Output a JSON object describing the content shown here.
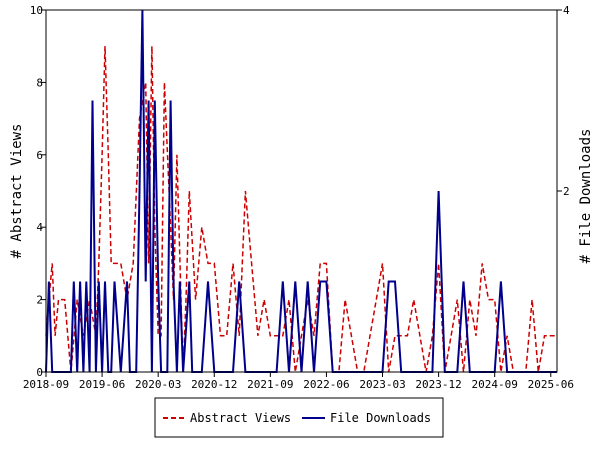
{
  "chart_data": {
    "type": "line",
    "xlabel": "",
    "ylabel_left": "# Abstract Views",
    "ylabel_right": "# File Downloads",
    "x_range": [
      "2018-09",
      "2025-07"
    ],
    "x_ticks": [
      "2018-09",
      "2019-06",
      "2020-03",
      "2020-12",
      "2021-09",
      "2022-06",
      "2023-03",
      "2023-12",
      "2024-09",
      "2025-06"
    ],
    "y_left_range": [
      0,
      10
    ],
    "y_left_ticks": [
      "0",
      "2",
      "4",
      "6",
      "8",
      "10"
    ],
    "y_right_range": [
      0,
      4
    ],
    "y_right_ticks": [
      "2",
      "4"
    ],
    "grid": false,
    "legend_position": "bottom",
    "series": [
      {
        "name": "Abstract Views",
        "axis": "left",
        "color": "#cc0000",
        "style": "dashed",
        "x": [
          "2018-09-01",
          "2018-09-15",
          "2018-10-01",
          "2018-10-15",
          "2018-11-01",
          "2018-12-01",
          "2019-01-01",
          "2019-02-01",
          "2019-03-01",
          "2019-04-01",
          "2019-05-01",
          "2019-05-15",
          "2019-06-01",
          "2019-06-15",
          "2019-07-01",
          "2019-07-15",
          "2019-08-01",
          "2019-09-01",
          "2019-10-01",
          "2019-11-01",
          "2019-12-01",
          "2020-01-01",
          "2020-01-15",
          "2020-02-01",
          "2020-02-15",
          "2020-03-01",
          "2020-03-15",
          "2020-04-01",
          "2020-05-01",
          "2020-05-15",
          "2020-06-01",
          "2020-07-01",
          "2020-07-15",
          "2020-08-01",
          "2020-09-01",
          "2020-10-01",
          "2020-11-01",
          "2020-12-01",
          "2021-01-01",
          "2021-02-01",
          "2021-03-01",
          "2021-04-01",
          "2021-05-01",
          "2021-06-01",
          "2021-07-01",
          "2021-08-01",
          "2021-09-01",
          "2021-10-01",
          "2021-11-01",
          "2021-12-01",
          "2022-01-01",
          "2022-02-01",
          "2022-03-01",
          "2022-04-01",
          "2022-05-01",
          "2022-06-01",
          "2022-07-01",
          "2022-08-01",
          "2022-09-01",
          "2022-10-01",
          "2022-11-01",
          "2022-12-01",
          "2023-01-01",
          "2023-02-01",
          "2023-03-01",
          "2023-04-01",
          "2023-05-01",
          "2023-06-01",
          "2023-07-01",
          "2023-08-01",
          "2023-09-01",
          "2023-10-01",
          "2023-11-01",
          "2023-12-01",
          "2024-01-01",
          "2024-02-01",
          "2024-03-01",
          "2024-04-01",
          "2024-05-01",
          "2024-06-01",
          "2024-07-01",
          "2024-08-01",
          "2024-09-01",
          "2024-10-01",
          "2024-11-01",
          "2024-12-01",
          "2025-01-01",
          "2025-02-01",
          "2025-03-01",
          "2025-04-01",
          "2025-05-01",
          "2025-06-01",
          "2025-07-01"
        ],
        "values": [
          1,
          2,
          3,
          1,
          2,
          2,
          0,
          2,
          1,
          2,
          1,
          3,
          6,
          9,
          6,
          3,
          3,
          3,
          2,
          3,
          7,
          8,
          3,
          9,
          4,
          1,
          1,
          8,
          4,
          2,
          6,
          0,
          2,
          5,
          2,
          4,
          3,
          3,
          1,
          1,
          3,
          1,
          5,
          3,
          1,
          2,
          1,
          1,
          1,
          2,
          0,
          1,
          2,
          1,
          3,
          3,
          0,
          0,
          2,
          1,
          0,
          0,
          1,
          2,
          3,
          0,
          1,
          1,
          1,
          2,
          1,
          0,
          1,
          3,
          0,
          1,
          2,
          0,
          2,
          1,
          3,
          2,
          2,
          0,
          1,
          0,
          0,
          0,
          2,
          0,
          1,
          1,
          1
        ]
      },
      {
        "name": "File Downloads",
        "axis": "right",
        "color": "#00008b",
        "style": "solid",
        "x": [
          "2018-09-01",
          "2018-09-15",
          "2018-10-01",
          "2018-10-15",
          "2018-11-01",
          "2018-12-01",
          "2019-01-01",
          "2019-01-15",
          "2019-02-01",
          "2019-02-15",
          "2019-03-01",
          "2019-03-15",
          "2019-04-01",
          "2019-04-15",
          "2019-05-01",
          "2019-05-15",
          "2019-06-01",
          "2019-06-15",
          "2019-07-01",
          "2019-07-15",
          "2019-08-01",
          "2019-09-01",
          "2019-10-01",
          "2019-10-15",
          "2019-11-01",
          "2019-11-15",
          "2019-12-01",
          "2019-12-15",
          "2020-01-01",
          "2020-01-15",
          "2020-02-01",
          "2020-02-15",
          "2020-03-01",
          "2020-03-15",
          "2020-04-01",
          "2020-04-15",
          "2020-05-01",
          "2020-05-15",
          "2020-06-01",
          "2020-06-15",
          "2020-07-01",
          "2020-08-01",
          "2020-08-15",
          "2020-09-01",
          "2020-10-01",
          "2020-11-01",
          "2020-12-01",
          "2021-01-01",
          "2021-02-01",
          "2021-03-01",
          "2021-04-01",
          "2021-05-01",
          "2021-06-01",
          "2021-07-01",
          "2021-08-01",
          "2021-09-01",
          "2021-10-01",
          "2021-11-01",
          "2021-12-01",
          "2022-01-01",
          "2022-02-01",
          "2022-03-01",
          "2022-04-01",
          "2022-05-01",
          "2022-06-01",
          "2022-07-01",
          "2022-08-01",
          "2022-09-01",
          "2022-10-01",
          "2022-11-01",
          "2022-12-01",
          "2023-01-01",
          "2023-02-01",
          "2023-03-01",
          "2023-04-01",
          "2023-05-01",
          "2023-06-01",
          "2023-07-01",
          "2023-08-01",
          "2023-09-01",
          "2023-10-01",
          "2023-11-01",
          "2023-12-01",
          "2024-01-01",
          "2024-02-01",
          "2024-03-01",
          "2024-04-01",
          "2024-05-01",
          "2024-06-01",
          "2024-07-01",
          "2024-08-01",
          "2024-09-01",
          "2024-10-01",
          "2024-11-01",
          "2024-12-01",
          "2025-01-01",
          "2025-02-01",
          "2025-03-01",
          "2025-04-01",
          "2025-05-01",
          "2025-06-01",
          "2025-07-01"
        ],
        "values": [
          0,
          1,
          0,
          0,
          0,
          0,
          0,
          1,
          0,
          1,
          0,
          1,
          0,
          3,
          0,
          1,
          0,
          1,
          0,
          0,
          1,
          0,
          1,
          0,
          0,
          0,
          2,
          4,
          1,
          3,
          0,
          3,
          1,
          0,
          0,
          0,
          3,
          1,
          0,
          1,
          0,
          1,
          0,
          0,
          0,
          1,
          0,
          0,
          0,
          0,
          1,
          0,
          0,
          0,
          0,
          0,
          0,
          1,
          0,
          1,
          0,
          1,
          0,
          1,
          1,
          0,
          0,
          0,
          0,
          0,
          0,
          0,
          0,
          0,
          1,
          1,
          0,
          0,
          0,
          0,
          0,
          0,
          2,
          0,
          0,
          0,
          1,
          0,
          0,
          0,
          0,
          0,
          1,
          0,
          0,
          0,
          0,
          0,
          0,
          0,
          0,
          0
        ]
      }
    ]
  }
}
